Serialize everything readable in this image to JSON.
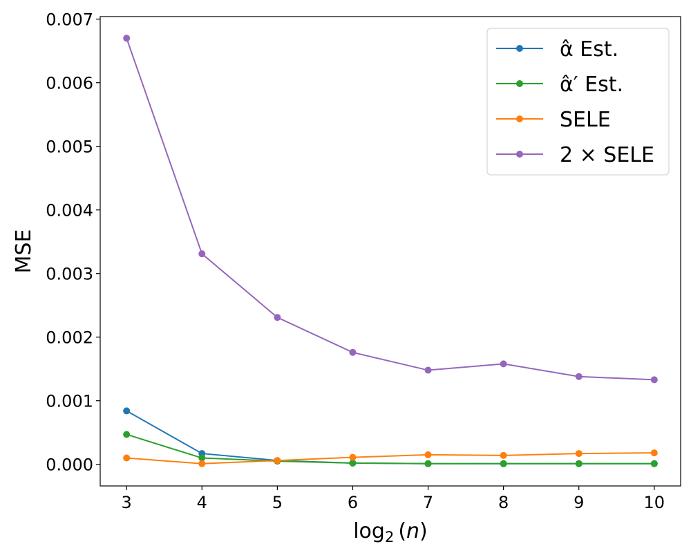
{
  "chart_data": {
    "type": "line",
    "xlabel": "log2(n)",
    "ylabel": "MSE",
    "x": [
      3,
      4,
      5,
      6,
      7,
      8,
      9,
      10
    ],
    "xlim": [
      2.65,
      10.35
    ],
    "ylim": [
      -0.00034,
      0.00704
    ],
    "xticks": [
      3,
      4,
      5,
      6,
      7,
      8,
      9,
      10
    ],
    "xtick_labels": [
      "3",
      "4",
      "5",
      "6",
      "7",
      "8",
      "9",
      "10"
    ],
    "yticks": [
      0.0,
      0.001,
      0.002,
      0.003,
      0.004,
      0.005,
      0.006,
      0.007
    ],
    "ytick_labels": [
      "0.000",
      "0.001",
      "0.002",
      "0.003",
      "0.004",
      "0.005",
      "0.006",
      "0.007"
    ],
    "grid": false,
    "legend_position": "top-right",
    "series": [
      {
        "name": "α̂ Est.",
        "color": "#1f77b4",
        "values": [
          0.00084,
          0.00017,
          6e-05,
          2e-05,
          1e-05,
          1e-05,
          1e-05,
          1e-05
        ]
      },
      {
        "name": "α̂′ Est.",
        "color": "#2ca02c",
        "values": [
          0.00047,
          0.0001,
          5e-05,
          2e-05,
          1e-05,
          1e-05,
          1e-05,
          1e-05
        ]
      },
      {
        "name": "SELE",
        "color": "#ff7f0e",
        "values": [
          0.0001,
          1e-05,
          6e-05,
          0.00011,
          0.00015,
          0.00014,
          0.00017,
          0.00018
        ]
      },
      {
        "name": "2 × SELE",
        "color": "#9467bd",
        "values": [
          0.0067,
          0.00331,
          0.00231,
          0.00176,
          0.00148,
          0.00158,
          0.00138,
          0.00133
        ]
      }
    ]
  }
}
